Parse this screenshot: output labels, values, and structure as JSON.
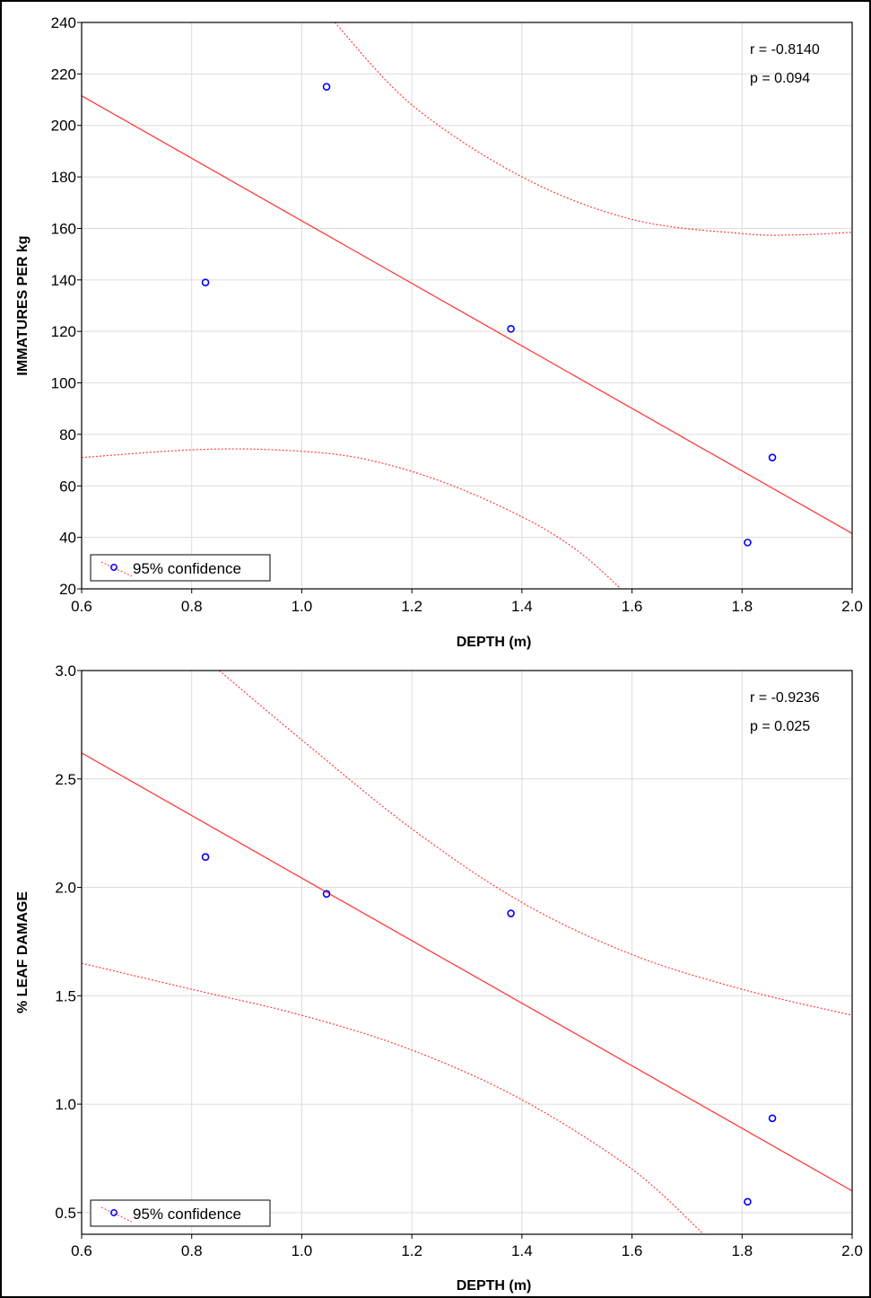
{
  "chart_data": [
    {
      "type": "scatter",
      "title": "",
      "xlabel": "DEPTH (m)",
      "ylabel": "IMMATURES PER kg",
      "xlim": [
        0.6,
        2.0
      ],
      "ylim": [
        20,
        240
      ],
      "xticks": [
        "0.6",
        "0.8",
        "1.0",
        "1.2",
        "1.4",
        "1.6",
        "1.8",
        "2.0"
      ],
      "yticks": [
        "20",
        "40",
        "60",
        "80",
        "100",
        "120",
        "140",
        "160",
        "180",
        "200",
        "220",
        "240"
      ],
      "grid": true,
      "series": [
        {
          "points": [
            {
              "x": 0.825,
              "y": 139
            },
            {
              "x": 1.045,
              "y": 215
            },
            {
              "x": 1.38,
              "y": 121
            },
            {
              "x": 1.81,
              "y": 38
            },
            {
              "x": 1.855,
              "y": 71
            }
          ]
        }
      ],
      "fit_line": [
        {
          "x": 0.6,
          "y": 211.5
        },
        {
          "x": 2.0,
          "y": 41.5
        }
      ],
      "ci_upper": [
        {
          "x": 1.06,
          "y": 240
        },
        {
          "x": 1.2,
          "y": 208
        },
        {
          "x": 1.4,
          "y": 180
        },
        {
          "x": 1.6,
          "y": 163.5
        },
        {
          "x": 1.8,
          "y": 158
        },
        {
          "x": 1.9,
          "y": 157.5
        },
        {
          "x": 2.0,
          "y": 158.5
        }
      ],
      "ci_lower": [
        {
          "x": 0.6,
          "y": 71
        },
        {
          "x": 0.8,
          "y": 74
        },
        {
          "x": 0.95,
          "y": 74
        },
        {
          "x": 1.1,
          "y": 71
        },
        {
          "x": 1.25,
          "y": 62
        },
        {
          "x": 1.4,
          "y": 48
        },
        {
          "x": 1.5,
          "y": 35
        },
        {
          "x": 1.58,
          "y": 20
        }
      ],
      "annotations": [
        "r = -0.8140",
        "p = 0.094"
      ],
      "legend": {
        "label": "95% confidence",
        "position": "bottom-left"
      },
      "colors": {
        "points": "#0000ff",
        "fit": "#ff3b3b",
        "ci": "#ff3b3b",
        "grid": "#dcdcdc"
      }
    },
    {
      "type": "scatter",
      "title": "",
      "xlabel": "DEPTH (m)",
      "ylabel": "% LEAF DAMAGE",
      "xlim": [
        0.6,
        2.0
      ],
      "ylim": [
        0.4,
        3.0
      ],
      "xticks": [
        "0.6",
        "0.8",
        "1.0",
        "1.2",
        "1.4",
        "1.6",
        "1.8",
        "2.0"
      ],
      "yticks": [
        "0.5",
        "1.0",
        "1.5",
        "2.0",
        "2.5",
        "3.0"
      ],
      "grid": true,
      "series": [
        {
          "points": [
            {
              "x": 0.825,
              "y": 2.14
            },
            {
              "x": 1.045,
              "y": 1.97
            },
            {
              "x": 1.38,
              "y": 1.88
            },
            {
              "x": 1.81,
              "y": 0.55
            },
            {
              "x": 1.855,
              "y": 0.935
            }
          ]
        }
      ],
      "fit_line": [
        {
          "x": 0.6,
          "y": 2.62
        },
        {
          "x": 2.0,
          "y": 0.6
        }
      ],
      "ci_upper": [
        {
          "x": 0.85,
          "y": 3.0
        },
        {
          "x": 1.0,
          "y": 2.68
        },
        {
          "x": 1.2,
          "y": 2.27
        },
        {
          "x": 1.4,
          "y": 1.93
        },
        {
          "x": 1.6,
          "y": 1.69
        },
        {
          "x": 1.8,
          "y": 1.53
        },
        {
          "x": 2.0,
          "y": 1.41
        }
      ],
      "ci_lower": [
        {
          "x": 0.6,
          "y": 1.65
        },
        {
          "x": 0.8,
          "y": 1.53
        },
        {
          "x": 1.0,
          "y": 1.41
        },
        {
          "x": 1.2,
          "y": 1.25
        },
        {
          "x": 1.4,
          "y": 1.02
        },
        {
          "x": 1.6,
          "y": 0.7
        },
        {
          "x": 1.73,
          "y": 0.4
        }
      ],
      "annotations": [
        "r = -0.9236",
        "p = 0.025"
      ],
      "legend": {
        "label": "95% confidence",
        "position": "bottom-left"
      },
      "colors": {
        "points": "#0000ff",
        "fit": "#ff3b3b",
        "ci": "#ff3b3b",
        "grid": "#dcdcdc"
      }
    }
  ]
}
